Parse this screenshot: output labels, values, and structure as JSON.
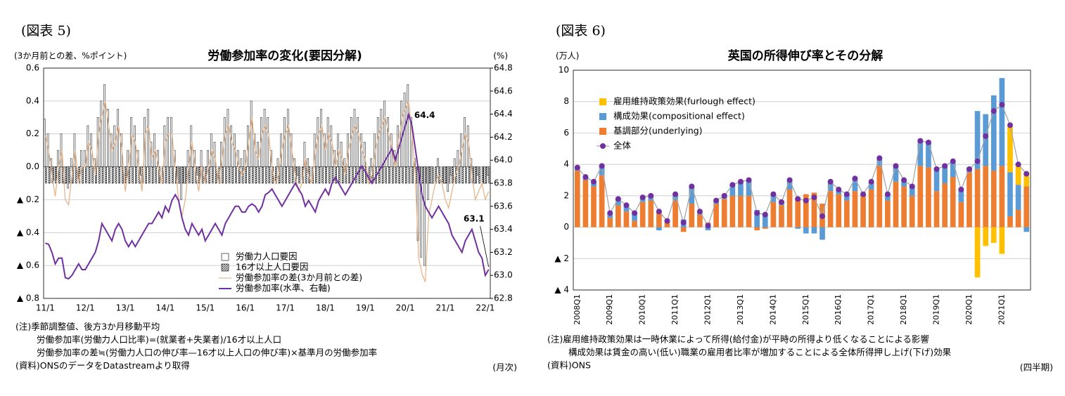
{
  "chart_data": [
    {
      "type": "combo",
      "figure_label": "(図表 5)",
      "title": "労働参加率の変化(要因分解)",
      "unit_label": "(3か月前との差、%ポイント)",
      "y2_unit_label": "(%)",
      "period_label": "(月次)",
      "notes": [
        "(注)季節調整値、後方3か月移動平均",
        "労働参加率(労働力人口比率)=(就業者+失業者)/16才以上人口",
        "労働参加率の差≒(労働力人口の伸び率—16才以上人口の伸び率)×基準月の労働参加率"
      ],
      "source": "(資料)ONSのデータをDatastreamより取得",
      "annotations": [
        64.4,
        63.1
      ],
      "legend": "lower center",
      "grid": true,
      "ylim": [
        -0.8,
        0.6
      ],
      "yticks": [
        0.6,
        0.4,
        0.2,
        {
          "value": 0,
          "label": "0.0"
        },
        {
          "value": -0.2,
          "label": "▲ 0.2"
        },
        {
          "value": -0.4,
          "label": "▲ 0.4"
        },
        {
          "value": -0.6,
          "label": "▲ 0.6"
        },
        {
          "value": -0.8,
          "label": "▲ 0.8"
        }
      ],
      "y2lim": [
        62.8,
        64.8
      ],
      "y2ticks": [
        64.8,
        64.6,
        64.4,
        64.2,
        {
          "value": 64,
          "label": "64.0"
        },
        63.8,
        63.6,
        63.4,
        63.2,
        {
          "value": 63,
          "label": "63.0"
        },
        62.8
      ],
      "categories": [
        "11/1",
        null,
        null,
        null,
        null,
        null,
        null,
        null,
        null,
        null,
        null,
        null,
        "12/1",
        null,
        null,
        null,
        null,
        null,
        null,
        null,
        null,
        null,
        null,
        null,
        "13/1",
        null,
        null,
        null,
        null,
        null,
        null,
        null,
        null,
        null,
        null,
        null,
        "14/1",
        null,
        null,
        null,
        null,
        null,
        null,
        null,
        null,
        null,
        null,
        null,
        "15/1",
        null,
        null,
        null,
        null,
        null,
        null,
        null,
        null,
        null,
        null,
        null,
        "16/1",
        null,
        null,
        null,
        null,
        null,
        null,
        null,
        null,
        null,
        null,
        null,
        "17/1",
        null,
        null,
        null,
        null,
        null,
        null,
        null,
        null,
        null,
        null,
        null,
        "18/1",
        null,
        null,
        null,
        null,
        null,
        null,
        null,
        null,
        null,
        null,
        null,
        "19/1",
        null,
        null,
        null,
        null,
        null,
        null,
        null,
        null,
        null,
        null,
        null,
        "20/1",
        null,
        null,
        null,
        null,
        null,
        null,
        null,
        null,
        null,
        null,
        null,
        "21/1",
        null,
        null,
        null,
        null,
        null,
        null,
        null,
        null,
        null,
        null,
        null,
        "22/1",
        null
      ],
      "series": [
        {
          "name": "労働力人口要因",
          "kind": "bar",
          "style": "plain",
          "color": "#ffffff",
          "values": [
            0.29,
            0.2,
            0.05,
            -0.08,
            0.1,
            0.2,
            -0.1,
            -0.13,
            0.05,
            0.2,
            0,
            0.1,
            0.1,
            0.25,
            0.2,
            0.05,
            0.3,
            0.4,
            0.5,
            0.35,
            0.2,
            0.25,
            0.35,
            0.2,
            -0.05,
            0.1,
            0.3,
            0.25,
            0.1,
            -0.05,
            0.3,
            0.35,
            0.15,
            0.2,
            0.1,
            0,
            0.25,
            0.3,
            0.3,
            0.1,
            -0.1,
            -0.2,
            -0.1,
            0.1,
            0.25,
            0.1,
            -0.05,
            0.1,
            0,
            0.1,
            0.2,
            0.15,
            0,
            0.15,
            0.3,
            0.35,
            0.25,
            0.2,
            0.1,
            0.05,
            0.1,
            0.25,
            0.4,
            0.2,
            0.15,
            0.3,
            0.35,
            0.3,
            0.1,
            0,
            0.05,
            0.2,
            0.3,
            0.35,
            0.2,
            0.05,
            -0.05,
            0,
            0.15,
            0.05,
            0,
            0.2,
            0.3,
            0.35,
            0.2,
            0.3,
            0.25,
            0.1,
            0.2,
            0.15,
            0.05,
            0.2,
            0.3,
            0.35,
            0.3,
            0.2,
            0.15,
            0,
            0.05,
            0.2,
            0.3,
            0.35,
            0.4,
            0.3,
            0.2,
            0.1,
            0.25,
            0.4,
            0.45,
            0.5,
            0.3,
            0.05,
            -0.45,
            -0.55,
            -0.6,
            -0.2,
            -0.1,
            0,
            0.05,
            0,
            -0.1,
            -0.15,
            -0.05,
            0.05,
            0.1,
            0.2,
            0.3,
            0.25,
            0.05,
            -0.1,
            -0.05,
            0,
            -0.1,
            -0.05
          ]
        },
        {
          "name": "16才以上人口要因",
          "kind": "bar",
          "style": "hatch",
          "color": "#000000",
          "values": [
            -0.1,
            -0.1,
            -0.1,
            -0.1,
            -0.1,
            -0.1,
            -0.1,
            -0.1,
            -0.1,
            -0.1,
            -0.1,
            -0.1,
            -0.1,
            -0.1,
            -0.1,
            -0.1,
            -0.1,
            -0.1,
            -0.1,
            -0.1,
            -0.1,
            -0.1,
            -0.1,
            -0.1,
            -0.1,
            -0.1,
            -0.1,
            -0.1,
            -0.1,
            -0.1,
            -0.1,
            -0.1,
            -0.1,
            -0.1,
            -0.1,
            -0.1,
            -0.1,
            -0.1,
            -0.1,
            -0.1,
            -0.1,
            -0.1,
            -0.1,
            -0.1,
            -0.1,
            -0.1,
            -0.1,
            -0.1,
            -0.1,
            -0.1,
            -0.1,
            -0.1,
            -0.1,
            -0.1,
            -0.1,
            -0.1,
            -0.1,
            -0.1,
            -0.1,
            -0.1,
            -0.1,
            -0.1,
            -0.1,
            -0.1,
            -0.1,
            -0.1,
            -0.1,
            -0.1,
            -0.1,
            -0.1,
            -0.1,
            -0.1,
            -0.1,
            -0.1,
            -0.1,
            -0.1,
            -0.1,
            -0.1,
            -0.1,
            -0.1,
            -0.1,
            -0.1,
            -0.1,
            -0.1,
            -0.1,
            -0.1,
            -0.1,
            -0.1,
            -0.1,
            -0.1,
            -0.1,
            -0.1,
            -0.1,
            -0.1,
            -0.1,
            -0.1,
            -0.1,
            -0.1,
            -0.1,
            -0.1,
            -0.1,
            -0.1,
            -0.1,
            -0.1,
            -0.1,
            -0.1,
            -0.1,
            -0.1,
            -0.1,
            -0.1,
            -0.1,
            -0.1,
            -0.1,
            -0.1,
            -0.1,
            -0.1,
            -0.1,
            -0.1,
            -0.1,
            -0.1,
            -0.1,
            -0.1,
            -0.1,
            -0.1,
            -0.1,
            -0.1,
            -0.1,
            -0.1,
            -0.1,
            -0.1,
            -0.1,
            -0.1,
            -0.1,
            -0.1
          ]
        },
        {
          "name": "労働参加率の差(3か月前との差)",
          "kind": "line",
          "color": "#e8b48a",
          "values": [
            0.19,
            0.1,
            -0.05,
            -0.18,
            0,
            0.1,
            -0.2,
            -0.23,
            -0.05,
            0.1,
            -0.1,
            0,
            0,
            0.15,
            0.1,
            -0.05,
            0.2,
            0.3,
            0.4,
            0.25,
            0.1,
            0.15,
            0.25,
            0.1,
            -0.15,
            0,
            0.2,
            0.15,
            0,
            -0.15,
            0.2,
            0.25,
            0.05,
            0.1,
            0,
            -0.1,
            0.15,
            0.2,
            0.2,
            0,
            -0.2,
            -0.3,
            -0.2,
            0,
            0.15,
            0,
            -0.15,
            0,
            -0.1,
            0,
            0.1,
            0.05,
            -0.1,
            0.05,
            0.2,
            0.25,
            0.15,
            0.1,
            0,
            -0.05,
            0,
            0.15,
            0.3,
            0.1,
            0.05,
            0.2,
            0.25,
            0.2,
            0,
            -0.1,
            -0.05,
            0.1,
            0.2,
            0.25,
            0.1,
            -0.05,
            -0.15,
            -0.1,
            0.05,
            -0.05,
            -0.1,
            0.1,
            0.2,
            0.25,
            0.1,
            0.2,
            0.15,
            0,
            0.1,
            0.05,
            -0.05,
            0.1,
            0.2,
            0.25,
            0.2,
            0.1,
            0.05,
            -0.1,
            -0.05,
            0.1,
            0.2,
            0.25,
            0.3,
            0.2,
            0.1,
            0,
            0.15,
            0.3,
            0.35,
            0.4,
            0.2,
            -0.05,
            -0.55,
            -0.65,
            -0.7,
            -0.3,
            -0.2,
            -0.1,
            -0.05,
            -0.1,
            -0.2,
            -0.25,
            -0.15,
            -0.05,
            0,
            0.1,
            0.2,
            0.15,
            -0.05,
            -0.2,
            -0.15,
            -0.1,
            -0.2,
            -0.15
          ]
        },
        {
          "name": "労働参加率(水準、右軸)",
          "kind": "line",
          "axis": "y2",
          "color": "#7030a0",
          "values": [
            63.28,
            63.27,
            63.2,
            63.1,
            63.15,
            63.15,
            62.98,
            62.97,
            63,
            63.05,
            63.1,
            63.05,
            63.05,
            63.1,
            63.15,
            63.2,
            63.3,
            63.45,
            63.4,
            63.35,
            63.3,
            63.4,
            63.45,
            63.4,
            63.3,
            63.25,
            63.3,
            63.25,
            63.3,
            63.35,
            63.4,
            63.45,
            63.45,
            63.5,
            63.55,
            63.5,
            63.6,
            63.55,
            63.65,
            63.7,
            63.65,
            63.5,
            63.4,
            63.35,
            63.45,
            63.4,
            63.35,
            63.4,
            63.3,
            63.35,
            63.4,
            63.45,
            63.4,
            63.35,
            63.45,
            63.5,
            63.55,
            63.6,
            63.6,
            63.55,
            63.55,
            63.6,
            63.62,
            63.6,
            63.55,
            63.6,
            63.7,
            63.72,
            63.75,
            63.7,
            63.65,
            63.6,
            63.65,
            63.7,
            63.75,
            63.8,
            63.75,
            63.7,
            63.6,
            63.65,
            63.6,
            63.55,
            63.65,
            63.7,
            63.75,
            63.7,
            63.8,
            63.85,
            63.8,
            63.75,
            63.7,
            63.75,
            63.8,
            63.85,
            63.9,
            63.95,
            63.9,
            63.85,
            63.8,
            63.85,
            63.9,
            63.95,
            64,
            64.05,
            64.1,
            64,
            64.1,
            64.2,
            64.3,
            64.4,
            64.3,
            64.1,
            63.9,
            63.7,
            63.6,
            63.55,
            63.5,
            63.55,
            63.6,
            63.55,
            63.5,
            63.45,
            63.35,
            63.3,
            63.25,
            63.2,
            63.3,
            63.35,
            63.4,
            63.3,
            63.2,
            63.15,
            63,
            63.05
          ]
        }
      ]
    },
    {
      "type": "bar",
      "stacked": true,
      "figure_label": "(図表 6)",
      "title": "英国の所得伸び率とその分解",
      "unit_label": "(万人)",
      "period_label": "(四半期)",
      "notes": [
        "(注)雇用維持政策効果は一時休業によって所得(給付金)が平時の所得より低くなることによる影響",
        "構成効果は賃金の高い(低い)職業の雇用者比率が増加することによる全体所得押し上げ(下げ)効果"
      ],
      "source": "(資料)ONS",
      "legend": "upper left",
      "grid": true,
      "ylim": [
        -4,
        10
      ],
      "yticks": [
        10,
        8,
        6,
        4,
        2,
        0,
        {
          "value": -2,
          "label": "▲ 2"
        },
        {
          "value": -4,
          "label": "▲ 4"
        }
      ],
      "categories": [
        "2008Q1",
        null,
        null,
        null,
        "2009Q1",
        null,
        null,
        null,
        "2010Q1",
        null,
        null,
        null,
        "2011Q1",
        null,
        null,
        null,
        "2012Q1",
        null,
        null,
        null,
        "2013Q1",
        null,
        null,
        null,
        "2014Q1",
        null,
        null,
        null,
        "2015Q1",
        null,
        null,
        null,
        "2016Q1",
        null,
        null,
        null,
        "2017Q1",
        null,
        null,
        null,
        "2018Q1",
        null,
        null,
        null,
        "2019Q1",
        null,
        null,
        null,
        "2020Q1",
        null,
        null,
        null,
        "2021Q1",
        null,
        null,
        null
      ],
      "series": [
        {
          "name": "雇用維持政策効果(furlough effect)",
          "kind": "bar",
          "color": "#ffc000",
          "values": [
            null,
            null,
            null,
            null,
            null,
            null,
            null,
            null,
            null,
            null,
            null,
            null,
            null,
            null,
            null,
            null,
            null,
            null,
            null,
            null,
            null,
            null,
            null,
            null,
            null,
            null,
            null,
            null,
            null,
            null,
            null,
            null,
            null,
            null,
            null,
            null,
            null,
            null,
            null,
            null,
            null,
            null,
            null,
            null,
            null,
            null,
            null,
            null,
            0,
            -3.2,
            -1.2,
            -1,
            -1.7,
            2.9,
            1.3,
            0.9
          ]
        },
        {
          "name": "構成効果(compositional effect)",
          "kind": "bar",
          "color": "#5b9bd5",
          "values": [
            0.2,
            0.2,
            0.3,
            0.6,
            0.3,
            0.4,
            0.4,
            0.5,
            0.3,
            0.3,
            -0.2,
            0.1,
            0.4,
            0.5,
            1.1,
            0.2,
            -0.2,
            0.2,
            0.2,
            0.7,
            0.9,
            1,
            1.1,
            0.9,
            0.5,
            0.2,
            0.6,
            -0.1,
            -0.4,
            -0.4,
            -0.8,
            0.6,
            0.3,
            0.4,
            0.8,
            0.1,
            0.5,
            0.5,
            0.4,
            1,
            0.4,
            0.6,
            1.6,
            1.6,
            1.4,
            1.1,
            1,
            0.8,
            0.3,
            3.7,
            3.3,
            4.8,
            5.6,
            2.8,
            1.6,
            -0.3
          ]
        },
        {
          "name": "基調部分(underlying)",
          "kind": "bar",
          "color": "#ed7d31",
          "values": [
            3.6,
            3,
            2.6,
            3.3,
            0.6,
            1.4,
            1,
            0.4,
            1.6,
            1.7,
            1,
            0.3,
            1.7,
            -0.3,
            1.5,
            0.8,
            0.3,
            1.5,
            1.8,
            2,
            2,
            2,
            -0.2,
            -0.1,
            1.6,
            1.4,
            2.4,
            1.9,
            2.1,
            2.2,
            1.5,
            2.3,
            2.1,
            1.7,
            2.3,
            2,
            2.4,
            3.9,
            1.7,
            2.9,
            2.6,
            2,
            3.9,
            3.8,
            2.3,
            2.8,
            3.2,
            1.6,
            3.5,
            3.7,
            3.9,
            3.6,
            3.9,
            0.7,
            1.1,
            2.6
          ]
        },
        {
          "name": "全体",
          "kind": "line",
          "color": "#a6a6a6",
          "marker_color": "#7030a0",
          "values": [
            3.8,
            3.2,
            2.9,
            3.9,
            0.9,
            1.8,
            1.4,
            0.9,
            1.9,
            2,
            1,
            0.4,
            2.1,
            0.3,
            2.6,
            1,
            0.1,
            1.7,
            2,
            2.7,
            2.9,
            3,
            0.9,
            0.8,
            2.1,
            1.6,
            3,
            1.8,
            1.7,
            1.9,
            0.7,
            2.9,
            2.4,
            2.1,
            3.1,
            2.1,
            2.9,
            4.4,
            2.1,
            3.9,
            3,
            2.6,
            5.5,
            5.4,
            3.7,
            3.9,
            4.2,
            2.4,
            3.7,
            4.2,
            5.8,
            7.4,
            7.8,
            6.5,
            4,
            3.4
          ]
        }
      ]
    }
  ]
}
